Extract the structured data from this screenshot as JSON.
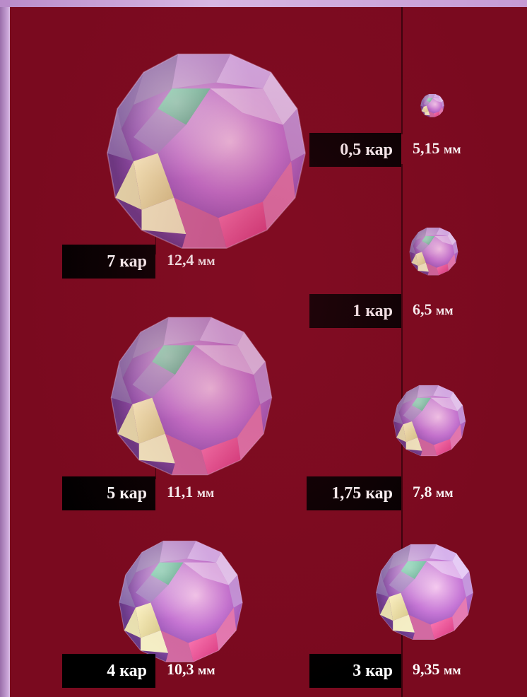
{
  "colors": {
    "background": "#7a0a1f",
    "border": "#c9a0d8",
    "label_bg": "#000000",
    "text": "#ffffff"
  },
  "gems": [
    {
      "carat": "7 кар",
      "size_value": "12,4",
      "unit": "мм"
    },
    {
      "carat": "5 кар",
      "size_value": "11,1",
      "unit": "мм"
    },
    {
      "carat": "4 кар",
      "size_value": "10,3",
      "unit": "мм"
    },
    {
      "carat": "0,5 кар",
      "size_value": "5,15",
      "unit": "мм"
    },
    {
      "carat": "1 кар",
      "size_value": "6,5",
      "unit": "мм"
    },
    {
      "carat": "1,75 кар",
      "size_value": "7,8",
      "unit": "мм"
    },
    {
      "carat": "3 кар",
      "size_value": "9,35",
      "unit": "мм"
    }
  ]
}
